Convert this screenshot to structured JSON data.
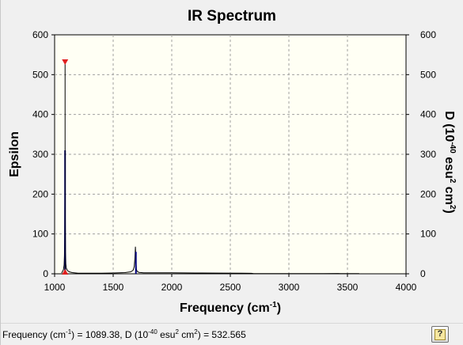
{
  "chart_data": {
    "type": "line",
    "title": "IR Spectrum",
    "xlabel": "Frequency (cm",
    "xlabel_sup": "-1",
    "xlabel_end": ")",
    "ylabel_left": "Epsilon",
    "ylabel_right": {
      "prefix": "D (10",
      "sup1": "-40",
      "mid": " esu",
      "sup2": "2",
      "mid2": " cm",
      "sup3": "2",
      "end": ")"
    },
    "xlim": [
      1000,
      4000
    ],
    "ylim": [
      0,
      600
    ],
    "y2lim": [
      0,
      600
    ],
    "x_ticks": [
      1000,
      1500,
      2000,
      2500,
      3000,
      3500,
      4000
    ],
    "y_ticks": [
      0,
      100,
      200,
      300,
      400,
      500,
      600
    ],
    "y2_ticks": [
      0,
      100,
      200,
      300,
      400,
      500,
      600
    ],
    "grid": true,
    "series": [
      {
        "color": "#000000",
        "x": [
          1060,
          1075,
          1081,
          1084,
          1086,
          1087.5,
          1089.38,
          1091,
          1093,
          1096,
          1100,
          1110,
          1125,
          1150,
          1200,
          1300,
          1400,
          1450,
          1500,
          1600,
          1650,
          1670,
          1680,
          1686,
          1690,
          1694,
          1698,
          1705,
          1720,
          1760,
          1850,
          2000,
          2200,
          2400,
          2600,
          2680,
          2700,
          2900,
          3100,
          3300,
          3420,
          3440,
          3600
        ],
        "y": [
          2,
          10,
          22,
          45,
          95,
          190,
          310,
          140,
          55,
          25,
          14,
          8,
          5,
          3,
          1.5,
          1.3,
          1.5,
          1.8,
          2,
          3,
          5,
          9,
          18,
          40,
          68,
          35,
          12,
          6,
          3.5,
          2.5,
          2.5,
          2.3,
          2,
          1.8,
          1.6,
          1.2,
          0.5,
          0.5,
          0.5,
          0.6,
          0.8,
          0.6,
          0.5
        ]
      },
      {
        "color": "#000080",
        "type": "stick",
        "x": [
          1089.38,
          1694
        ],
        "y": [
          310,
          55
        ]
      }
    ],
    "markers": [
      {
        "x": 1089.38,
        "y": 532.565,
        "shape": "triangle-down",
        "color": "#e02020"
      },
      {
        "x": 1089.38,
        "y": 0,
        "shape": "triangle-up",
        "color": "#e02020"
      }
    ],
    "selected_peak": {
      "x": 1089.38,
      "d": 532.565
    }
  },
  "status": {
    "freq_label": "Frequency (cm",
    "freq_sup": "-1",
    "freq_end": ") = ",
    "freq_value": "1089.38",
    "d_label": ", D (10",
    "d_sup1": "-40",
    "d_mid": " esu",
    "d_sup2": "2",
    "d_mid2": " cm",
    "d_sup3": "2",
    "d_end": ") = ",
    "d_value": "532.565"
  },
  "help_button": {
    "glyph": "?",
    "icon": "help-icon"
  },
  "colors": {
    "plot_background": "#fffff4",
    "grid": "#a0a0a0",
    "marker": "#e02020",
    "stick": "#000080"
  }
}
